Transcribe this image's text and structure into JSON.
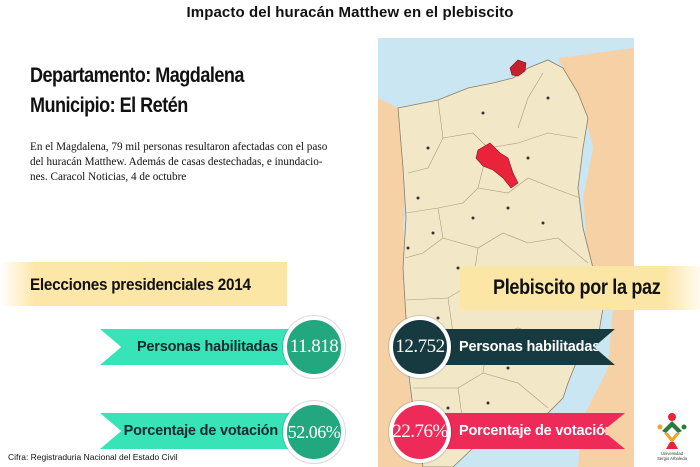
{
  "title": "Impacto del huracán Matthew en el plebiscito",
  "department": "Departamento: Magdalena",
  "municipality": "Municipio: El Retén",
  "description_lines": [
    "En el Magdalena, 79 mil personas resultaron afectadas con el paso",
    "del huracán Matthew. Además de casas destechadas, e inundacio-",
    "nes. Caracol Noticias, 4 de octubre"
  ],
  "left_section": {
    "label": "Elecciones presidenciales 2014",
    "voters_label": "Personas habilitadas",
    "voters_value": "11.818",
    "turnout_label": "Porcentaje de votación",
    "turnout_value": "52.06%"
  },
  "right_section": {
    "label": "Plebiscito por la paz",
    "voters_label": "Personas habilitadas",
    "voters_value": "12.752",
    "turnout_label": "Porcentaje de votación",
    "turnout_value": "22.76%"
  },
  "source": "Cifra: Registraduria Nacional del Estado Civil",
  "logo_text_lines": [
    "Universidad",
    "Sergio Arboleda"
  ],
  "colors": {
    "teal": "#39e3b8",
    "teal_dark": "#22a77f",
    "navy": "#173a40",
    "red": "#ee2a59",
    "banner": "#fce6a6",
    "map_land": "#f2e8c8",
    "map_sea": "#c9e6f2",
    "map_neighbor": "#f6d1a6",
    "highlight": "#e8233a"
  },
  "icons": [
    "map-magdalena",
    "university-logo-icon"
  ]
}
